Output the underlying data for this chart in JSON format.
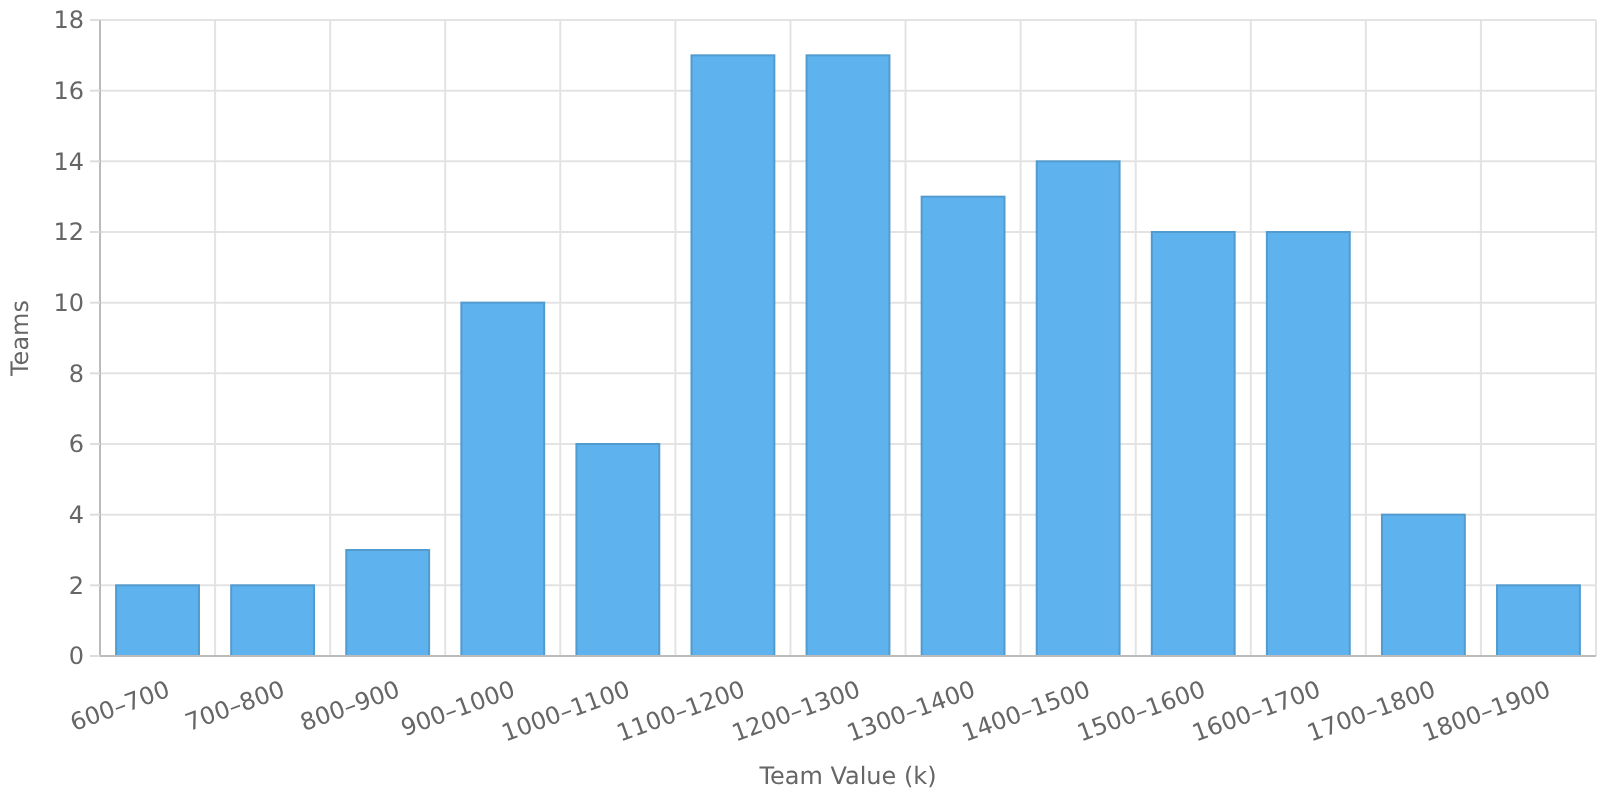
{
  "chart_data": {
    "type": "bar",
    "xlabel": "Team Value (k)",
    "ylabel": "Teams",
    "categories": [
      "600–700",
      "700–800",
      "800–900",
      "900–1000",
      "1000–1100",
      "1100–1200",
      "1200–1300",
      "1300–1400",
      "1400–1500",
      "1500–1600",
      "1600–1700",
      "1700–1800",
      "1800–1900"
    ],
    "values": [
      2,
      2,
      3,
      10,
      6,
      17,
      17,
      13,
      14,
      12,
      12,
      4,
      2
    ],
    "color": "#5eb3ef",
    "ylim": [
      0,
      18
    ],
    "yticks": [
      0,
      2,
      4,
      6,
      8,
      10,
      12,
      14,
      16,
      18
    ],
    "grid": true
  }
}
